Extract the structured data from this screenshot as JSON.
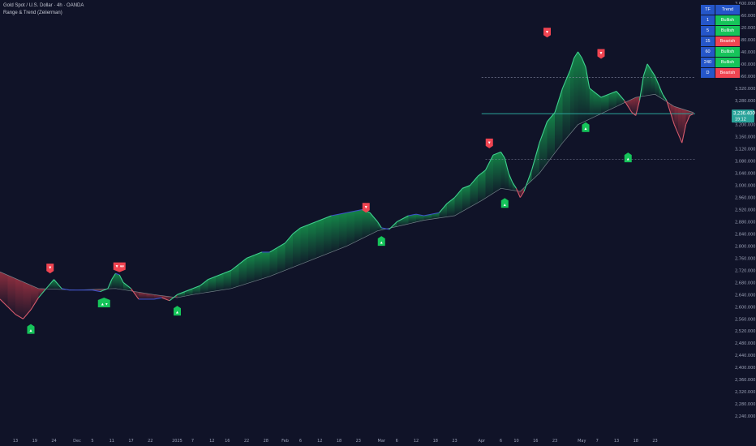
{
  "header": {
    "symbol": "Gold Spot / U.S. Dollar · 4h · OANDA",
    "indicator": "Range & Trend (Zeiierman)"
  },
  "colors": {
    "background": "#101328",
    "bull": "#16c45a",
    "bear": "#f04451",
    "neutral": "#3e52c8",
    "ma_line": "#8a9a9e",
    "last_price": "#2aa39a"
  },
  "trend_table": {
    "headers": [
      "TF",
      "Trend"
    ],
    "rows": [
      {
        "tf": "1",
        "trend": "Bullish"
      },
      {
        "tf": "5",
        "trend": "Bullish"
      },
      {
        "tf": "15",
        "trend": "Bearish"
      },
      {
        "tf": "60",
        "trend": "Bullish"
      },
      {
        "tf": "240",
        "trend": "Bullish"
      },
      {
        "tf": "D",
        "trend": "Bearish"
      }
    ]
  },
  "last_price": {
    "value": "3,236.400",
    "countdown": "19:12"
  },
  "chart_data": {
    "type": "line",
    "title": "",
    "ylim": [
      2200,
      3600
    ],
    "y_ticks": [
      "3,600.000",
      "3,560.000",
      "3,520.000",
      "3,480.000",
      "3,440.000",
      "3,400.000",
      "3,360.000",
      "3,320.000",
      "3,280.000",
      "3,240.000",
      "3,200.000",
      "3,160.000",
      "3,120.000",
      "3,080.000",
      "3,040.000",
      "3,000.000",
      "2,960.000",
      "2,920.000",
      "2,880.000",
      "2,840.000",
      "2,800.000",
      "2,760.000",
      "2,720.000",
      "2,680.000",
      "2,640.000",
      "2,600.000",
      "2,560.000",
      "2,520.000",
      "2,480.000",
      "2,440.000",
      "2,400.000",
      "2,360.000",
      "2,320.000",
      "2,280.000",
      "2,240.000"
    ],
    "x_range": [
      0,
      180
    ],
    "x_ticks": [
      {
        "label": "13",
        "x": 4
      },
      {
        "label": "19",
        "x": 9
      },
      {
        "label": "24",
        "x": 14
      },
      {
        "label": "Dec",
        "x": 20
      },
      {
        "label": "5",
        "x": 24
      },
      {
        "label": "11",
        "x": 29
      },
      {
        "label": "17",
        "x": 34
      },
      {
        "label": "22",
        "x": 39
      },
      {
        "label": "2025",
        "x": 46
      },
      {
        "label": "7",
        "x": 50
      },
      {
        "label": "12",
        "x": 55
      },
      {
        "label": "16",
        "x": 59
      },
      {
        "label": "22",
        "x": 64
      },
      {
        "label": "28",
        "x": 69
      },
      {
        "label": "Feb",
        "x": 74
      },
      {
        "label": "6",
        "x": 78
      },
      {
        "label": "12",
        "x": 83
      },
      {
        "label": "18",
        "x": 88
      },
      {
        "label": "23",
        "x": 93
      },
      {
        "label": "Mar",
        "x": 99
      },
      {
        "label": "6",
        "x": 103
      },
      {
        "label": "12",
        "x": 108
      },
      {
        "label": "18",
        "x": 113
      },
      {
        "label": "23",
        "x": 118
      },
      {
        "label": "Apr",
        "x": 125
      },
      {
        "label": "6",
        "x": 130
      },
      {
        "label": "10",
        "x": 134
      },
      {
        "label": "16",
        "x": 139
      },
      {
        "label": "23",
        "x": 144
      },
      {
        "label": "May",
        "x": 151
      },
      {
        "label": "7",
        "x": 155
      },
      {
        "label": "13",
        "x": 160
      },
      {
        "label": "18",
        "x": 165
      },
      {
        "label": "23",
        "x": 170
      }
    ],
    "series": [
      {
        "values": [
          [
            0,
            2625
          ],
          [
            2,
            2600
          ],
          [
            4,
            2575
          ],
          [
            6,
            2560
          ],
          [
            8,
            2590
          ],
          [
            10,
            2630
          ],
          [
            12,
            2660
          ],
          [
            14,
            2690
          ],
          [
            16,
            2660
          ],
          [
            18,
            2655
          ],
          [
            20,
            2655
          ],
          [
            22,
            2655
          ],
          [
            24,
            2655
          ],
          [
            26,
            2650
          ],
          [
            28,
            2660
          ],
          [
            29,
            2690
          ],
          [
            30,
            2710
          ],
          [
            31,
            2705
          ],
          [
            32,
            2680
          ],
          [
            34,
            2660
          ],
          [
            36,
            2625
          ],
          [
            38,
            2625
          ],
          [
            40,
            2625
          ],
          [
            42,
            2630
          ],
          [
            44,
            2620
          ],
          [
            46,
            2640
          ],
          [
            48,
            2650
          ],
          [
            50,
            2660
          ],
          [
            52,
            2670
          ],
          [
            54,
            2690
          ],
          [
            56,
            2700
          ],
          [
            58,
            2710
          ],
          [
            60,
            2720
          ],
          [
            62,
            2740
          ],
          [
            64,
            2760
          ],
          [
            66,
            2770
          ],
          [
            68,
            2780
          ],
          [
            70,
            2780
          ],
          [
            72,
            2795
          ],
          [
            74,
            2810
          ],
          [
            76,
            2840
          ],
          [
            78,
            2860
          ],
          [
            80,
            2870
          ],
          [
            82,
            2880
          ],
          [
            84,
            2890
          ],
          [
            86,
            2900
          ],
          [
            88,
            2905
          ],
          [
            90,
            2910
          ],
          [
            92,
            2915
          ],
          [
            94,
            2920
          ],
          [
            96,
            2910
          ],
          [
            98,
            2880
          ],
          [
            99,
            2860
          ],
          [
            101,
            2855
          ],
          [
            103,
            2880
          ],
          [
            106,
            2900
          ],
          [
            108,
            2905
          ],
          [
            110,
            2900
          ],
          [
            112,
            2905
          ],
          [
            114,
            2910
          ],
          [
            116,
            2940
          ],
          [
            118,
            2960
          ],
          [
            120,
            2990
          ],
          [
            122,
            3000
          ],
          [
            124,
            3030
          ],
          [
            126,
            3050
          ],
          [
            128,
            3100
          ],
          [
            130,
            3110
          ],
          [
            131,
            3090
          ],
          [
            132,
            3040
          ],
          [
            133,
            3010
          ],
          [
            134,
            2990
          ],
          [
            135,
            2960
          ],
          [
            136,
            2980
          ],
          [
            138,
            3050
          ],
          [
            140,
            3140
          ],
          [
            142,
            3210
          ],
          [
            144,
            3240
          ],
          [
            146,
            3320
          ],
          [
            148,
            3380
          ],
          [
            149,
            3420
          ],
          [
            150,
            3440
          ],
          [
            151,
            3420
          ],
          [
            152,
            3390
          ],
          [
            153,
            3320
          ],
          [
            154,
            3310
          ],
          [
            156,
            3290
          ],
          [
            158,
            3300
          ],
          [
            160,
            3310
          ],
          [
            162,
            3280
          ],
          [
            164,
            3240
          ],
          [
            165,
            3230
          ],
          [
            166,
            3280
          ],
          [
            167,
            3360
          ],
          [
            168,
            3400
          ],
          [
            169,
            3380
          ],
          [
            170,
            3360
          ],
          [
            171,
            3330
          ],
          [
            172,
            3300
          ],
          [
            173,
            3280
          ],
          [
            174,
            3240
          ],
          [
            175,
            3200
          ],
          [
            176,
            3170
          ],
          [
            177,
            3140
          ],
          [
            178,
            3200
          ],
          [
            179,
            3230
          ],
          [
            180,
            3236
          ]
        ]
      },
      {
        "values": [
          [
            0,
            2715
          ],
          [
            10,
            2660
          ],
          [
            20,
            2655
          ],
          [
            30,
            2660
          ],
          [
            40,
            2640
          ],
          [
            46,
            2630
          ],
          [
            50,
            2640
          ],
          [
            60,
            2660
          ],
          [
            70,
            2700
          ],
          [
            80,
            2750
          ],
          [
            90,
            2800
          ],
          [
            98,
            2850
          ],
          [
            105,
            2870
          ],
          [
            110,
            2885
          ],
          [
            118,
            2900
          ],
          [
            125,
            2950
          ],
          [
            130,
            2990
          ],
          [
            135,
            2980
          ],
          [
            140,
            3040
          ],
          [
            146,
            3140
          ],
          [
            150,
            3200
          ],
          [
            155,
            3230
          ],
          [
            160,
            3260
          ],
          [
            165,
            3290
          ],
          [
            170,
            3300
          ],
          [
            175,
            3260
          ],
          [
            180,
            3240
          ]
        ]
      }
    ],
    "markers": [
      {
        "x": 13,
        "y": 2718,
        "dir": "down",
        "label": "▼"
      },
      {
        "x": 8,
        "y": 2535,
        "dir": "up",
        "label": "▲"
      },
      {
        "x": 27,
        "y": 2622,
        "dir": "up",
        "label": "▲ ▾"
      },
      {
        "x": 31,
        "y": 2722,
        "dir": "down",
        "label": "▼ ▾▾"
      },
      {
        "x": 46,
        "y": 2595,
        "dir": "up",
        "label": "▲"
      },
      {
        "x": 95,
        "y": 2918,
        "dir": "down",
        "label": "▼"
      },
      {
        "x": 99,
        "y": 2825,
        "dir": "up",
        "label": "▲"
      },
      {
        "x": 127,
        "y": 3130,
        "dir": "down",
        "label": "▼"
      },
      {
        "x": 131,
        "y": 2950,
        "dir": "up",
        "label": "▲"
      },
      {
        "x": 142,
        "y": 3495,
        "dir": "down",
        "label": "▼"
      },
      {
        "x": 152,
        "y": 3200,
        "dir": "up",
        "label": "▲"
      },
      {
        "x": 156,
        "y": 3425,
        "dir": "down",
        "label": "▼"
      },
      {
        "x": 163,
        "y": 3100,
        "dir": "up",
        "label": "▲"
      }
    ],
    "levels": [
      {
        "y": 3355,
        "style": "dashed",
        "x_from": 125
      },
      {
        "y": 3236,
        "style": "solid",
        "x_from": 125
      },
      {
        "y": 3085,
        "style": "dashed",
        "x_from": 126
      }
    ]
  }
}
